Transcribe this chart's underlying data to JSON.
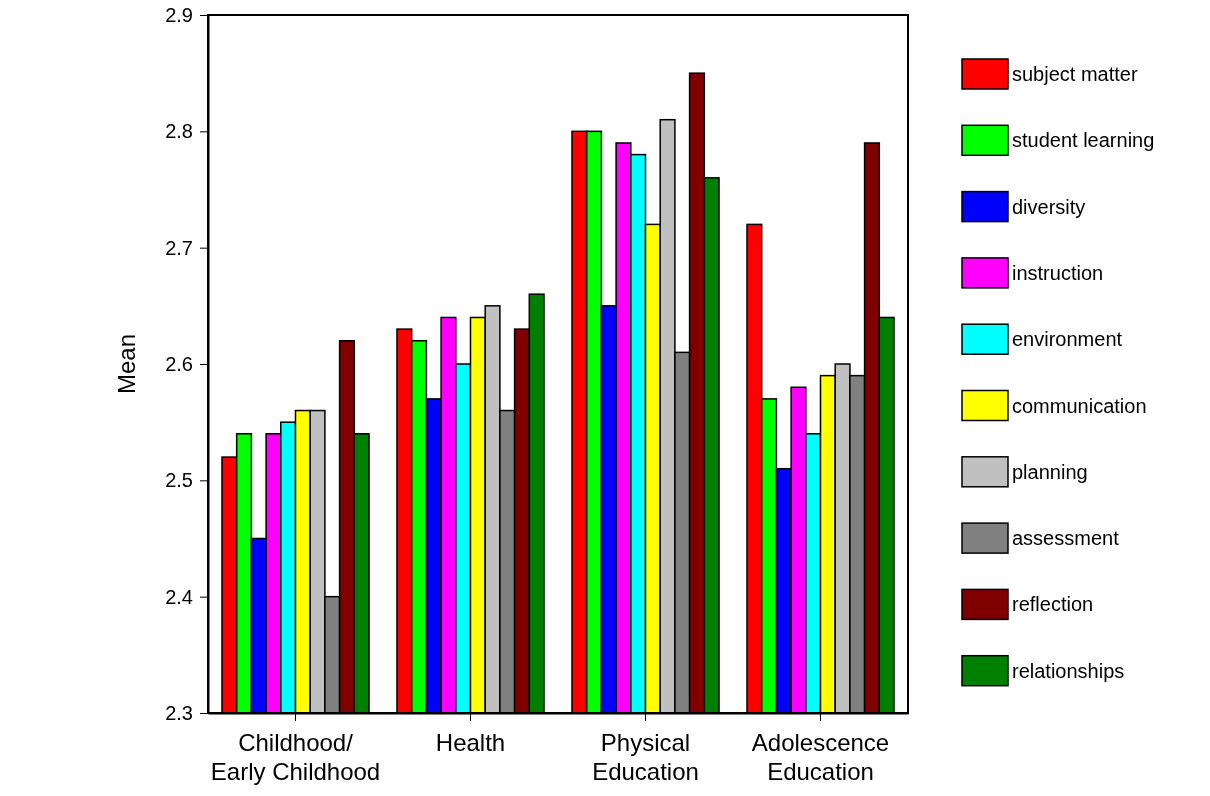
{
  "chart_data": {
    "type": "bar",
    "ylabel": "Mean",
    "categories": [
      "Childhood/ Early Childhood",
      "Health",
      "Physical Education",
      "Adolescence Education"
    ],
    "ylim": [
      2.3,
      2.9
    ],
    "yticks": [
      2.3,
      2.4,
      2.5,
      2.6,
      2.7,
      2.8,
      2.9
    ],
    "grid": false,
    "legend": "right",
    "series": [
      {
        "name": "subject matter",
        "color": "#ff0000",
        "values": [
          2.52,
          2.63,
          2.8,
          2.72
        ]
      },
      {
        "name": "student learning",
        "color": "#00ff00",
        "values": [
          2.54,
          2.62,
          2.8,
          2.57
        ]
      },
      {
        "name": "diversity",
        "color": "#0000ff",
        "values": [
          2.45,
          2.57,
          2.65,
          2.51
        ]
      },
      {
        "name": "instruction",
        "color": "#ff00ff",
        "values": [
          2.54,
          2.64,
          2.79,
          2.58
        ]
      },
      {
        "name": "environment",
        "color": "#00ffff",
        "values": [
          2.55,
          2.6,
          2.78,
          2.54
        ]
      },
      {
        "name": "communication",
        "color": "#ffff00",
        "values": [
          2.56,
          2.64,
          2.72,
          2.59
        ]
      },
      {
        "name": "planning",
        "color": "#c0c0c0",
        "values": [
          2.56,
          2.65,
          2.81,
          2.6
        ]
      },
      {
        "name": "assessment",
        "color": "#808080",
        "values": [
          2.4,
          2.56,
          2.61,
          2.59
        ]
      },
      {
        "name": "reflection",
        "color": "#800000",
        "values": [
          2.62,
          2.63,
          2.85,
          2.79
        ]
      },
      {
        "name": "relationships",
        "color": "#008000",
        "values": [
          2.54,
          2.66,
          2.76,
          2.64
        ]
      }
    ]
  }
}
